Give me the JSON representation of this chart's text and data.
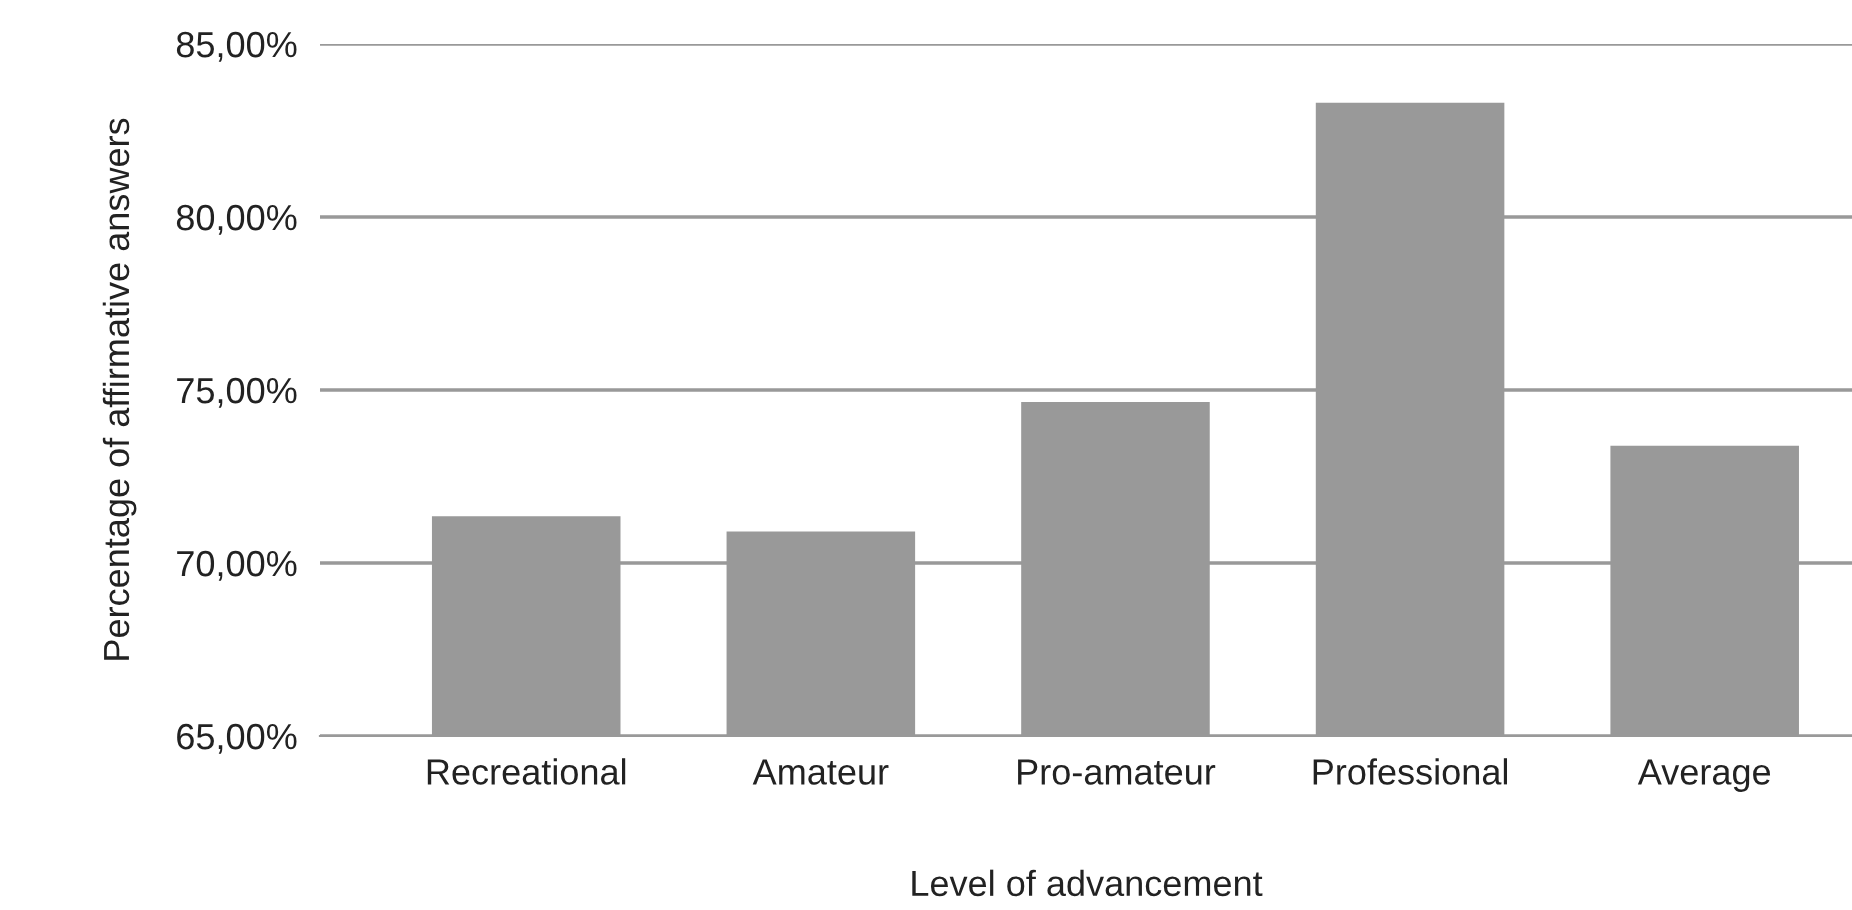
{
  "chart_data": {
    "type": "bar",
    "xlabel": "Level of advancement",
    "ylabel": "Percentage of affirmative answers",
    "categories": [
      "Recreational",
      "Amateur",
      "Pro-amateur",
      "Professional",
      "Average"
    ],
    "values": [
      71.35,
      70.91,
      74.65,
      83.3,
      73.39
    ],
    "color": "#999999",
    "ylim": [
      65,
      85
    ],
    "yticks": [
      {
        "value": 65,
        "label": "65,00%"
      },
      {
        "value": 70,
        "label": "70,00%"
      },
      {
        "value": 75,
        "label": "75,00%"
      },
      {
        "value": 80,
        "label": "80,00%"
      },
      {
        "value": 85,
        "label": "85,00%"
      }
    ],
    "grid": "y"
  }
}
